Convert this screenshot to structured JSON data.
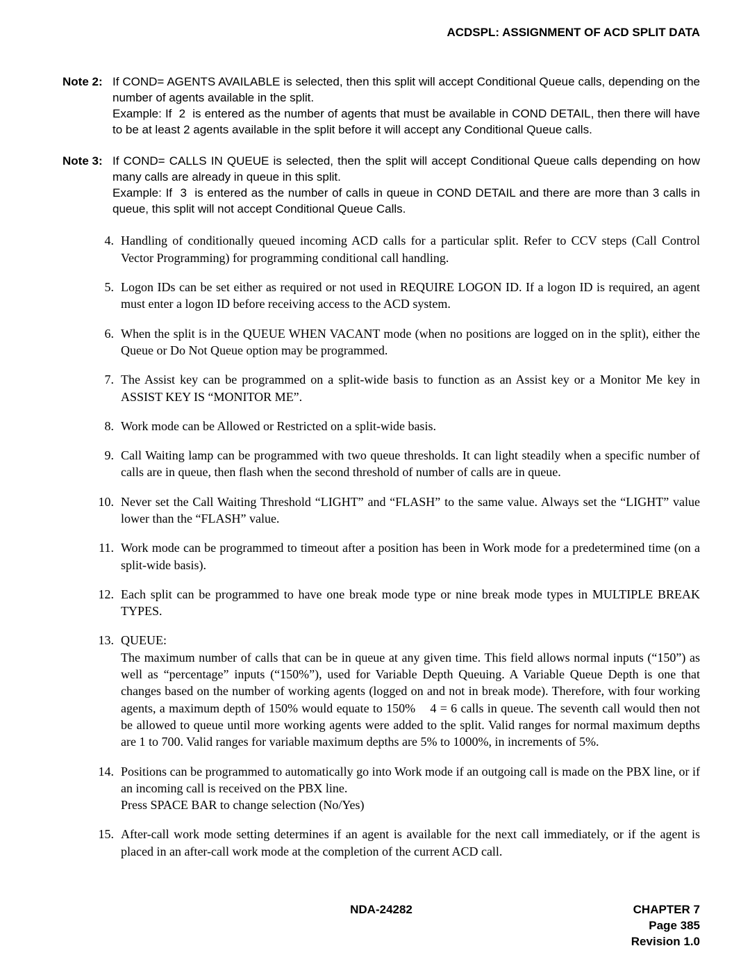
{
  "header": {
    "title": "ACDSPL: ASSIGNMENT OF ACD SPLIT DATA"
  },
  "notes": [
    {
      "label": "Note 2:",
      "text": "If COND= AGENTS AVAILABLE is selected, then this split will accept Conditional Queue calls, depending on the number of agents available in the split.\nExample: If  2  is entered as the number of agents that must be available in COND DETAIL, then there will have to be at least 2 agents available in the split before it will accept any Conditional Queue calls."
    },
    {
      "label": "Note 3:",
      "text": "If COND= CALLS IN QUEUE is selected, then the split will accept Conditional Queue calls depending on how many calls are already in queue in this split.\nExample: If  3  is entered as the number of calls in queue in COND DETAIL and there are more than 3 calls in queue, this split will not accept Conditional Queue Calls."
    }
  ],
  "listItems": [
    {
      "num": "4.",
      "text": "Handling of conditionally queued incoming ACD calls for a particular split. Refer to CCV steps (Call Control Vector Programming) for programming conditional call handling."
    },
    {
      "num": "5.",
      "text": "Logon IDs can be set either as required or not used in REQUIRE LOGON ID. If a logon ID is required, an agent must enter a logon ID before receiving access to the ACD system."
    },
    {
      "num": "6.",
      "text": "When the split is in the QUEUE WHEN VACANT mode (when no positions are logged on in the split), either the Queue or Do Not Queue option may be programmed."
    },
    {
      "num": "7.",
      "text": "The Assist key can be programmed on a split-wide basis to function as an Assist key or a Monitor Me key in ASSIST KEY IS “MONITOR ME”."
    },
    {
      "num": "8.",
      "text": "Work mode can be Allowed or Restricted on a split-wide basis."
    },
    {
      "num": "9.",
      "text": "Call Waiting lamp can be programmed with two queue thresholds. It can light steadily when a specific number of calls are in queue, then flash when the second threshold of number of calls are in queue."
    },
    {
      "num": "10.",
      "text": "Never set the Call Waiting Threshold “LIGHT” and “FLASH” to the same value. Always set the “LIGHT” value lower than the “FLASH” value."
    },
    {
      "num": "11.",
      "text": "Work mode can be programmed to timeout after a position has been in Work mode for a predetermined time (on a split-wide basis)."
    },
    {
      "num": "12.",
      "text": "Each split can be programmed to have one break mode type or nine break mode types in MULTIPLE BREAK TYPES."
    },
    {
      "num": "13.",
      "text": "QUEUE:\nThe maximum number of calls that can be in queue at any given time. This field allows normal inputs (“150”) as well as “percentage” inputs (“150%”), used for Variable Depth Queuing. A Variable Queue Depth is one that changes based on the number of working agents (logged on and not in break mode). Therefore, with four working agents, a maximum depth of 150% would equate to 150%    4 = 6 calls in queue. The seventh call would then not be allowed to queue until more working agents were added to the split. Valid ranges for normal maximum depths are 1 to 700. Valid ranges for variable maximum depths are 5% to 1000%, in increments of 5%."
    },
    {
      "num": "14.",
      "text": "Positions can be programmed to automatically go into Work mode if an outgoing call is made on the PBX line, or if an incoming call is received on the PBX line.\nPress SPACE BAR to change selection (No/Yes)"
    },
    {
      "num": "15.",
      "text": "After-call work mode setting determines if an agent is available for the next call immediately, or if the agent is placed in an after-call work mode at the completion of the current ACD call."
    }
  ],
  "footer": {
    "center": "NDA-24282",
    "chapter": "CHAPTER 7",
    "page": "Page 385",
    "revision": "Revision 1.0"
  }
}
